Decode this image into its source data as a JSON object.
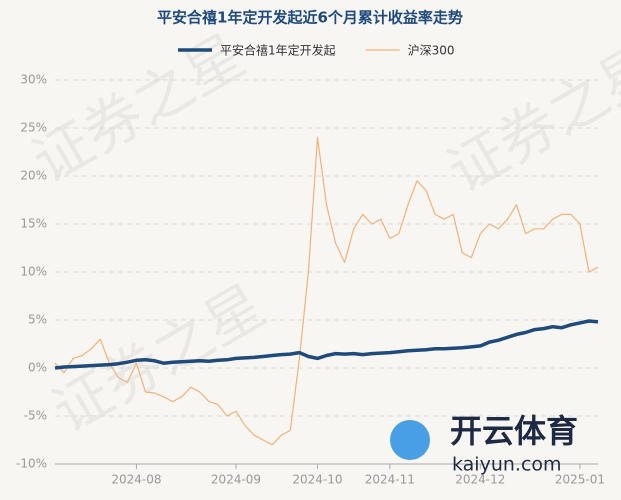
{
  "chart_data": {
    "type": "line",
    "title": "平安合禧1年定开发起近6个月累计收益率走势",
    "categories": [
      null,
      null,
      null,
      null,
      null,
      null,
      null,
      null,
      null,
      "2024-08",
      null,
      null,
      null,
      null,
      null,
      null,
      null,
      null,
      null,
      null,
      "2024-09",
      null,
      null,
      null,
      null,
      null,
      null,
      null,
      null,
      "2024-10",
      null,
      null,
      null,
      null,
      null,
      null,
      null,
      "2024-11",
      null,
      null,
      null,
      null,
      null,
      null,
      null,
      null,
      null,
      "2024-12",
      null,
      null,
      null,
      null,
      null,
      null,
      null,
      null,
      null,
      null,
      "2025-01",
      null,
      null
    ],
    "series": [
      {
        "name": "平安合禧1年定开发起",
        "color": "#1f4a7c",
        "width": 3.5,
        "values": [
          0,
          0.1,
          0.15,
          0.2,
          0.25,
          0.3,
          0.35,
          0.45,
          0.6,
          0.8,
          0.85,
          0.75,
          0.5,
          0.6,
          0.65,
          0.7,
          0.75,
          0.7,
          0.8,
          0.85,
          1.0,
          1.05,
          1.1,
          1.2,
          1.3,
          1.4,
          1.45,
          1.6,
          1.2,
          1.0,
          1.3,
          1.5,
          1.45,
          1.5,
          1.4,
          1.5,
          1.55,
          1.6,
          1.7,
          1.8,
          1.85,
          1.9,
          2.0,
          2.0,
          2.05,
          2.1,
          2.2,
          2.3,
          2.7,
          2.9,
          3.2,
          3.5,
          3.7,
          4.0,
          4.1,
          4.3,
          4.2,
          4.5,
          4.7,
          4.9,
          4.8
        ]
      },
      {
        "name": "沪深300",
        "color": "#f0b27a",
        "width": 1.2,
        "values": [
          0.5,
          -0.5,
          1.0,
          1.3,
          2.0,
          3.0,
          0.5,
          -1.0,
          -1.5,
          0.5,
          -2.5,
          -2.6,
          -3.0,
          -3.5,
          -3.0,
          -2.0,
          -2.5,
          -3.5,
          -3.8,
          -5.0,
          -4.5,
          -6.0,
          -7.0,
          -7.5,
          -8.0,
          -7.0,
          -6.5,
          1.0,
          10,
          24,
          17,
          13,
          11,
          14.5,
          16,
          15,
          15.5,
          13.5,
          14,
          17,
          19.5,
          18.5,
          16,
          15.5,
          16,
          12,
          11.5,
          14,
          15,
          14.5,
          15.5,
          17,
          14,
          14.5,
          14.5,
          15.5,
          16,
          16,
          15,
          10,
          10.5
        ]
      }
    ],
    "ylim": [
      -10,
      30
    ],
    "yticks": [
      {
        "value": -10,
        "label": "-10%"
      },
      {
        "value": -5,
        "label": "-5%"
      },
      {
        "value": 0,
        "label": "0%"
      },
      {
        "value": 5,
        "label": "5%"
      },
      {
        "value": 10,
        "label": "10%"
      },
      {
        "value": 15,
        "label": "15%"
      },
      {
        "value": 20,
        "label": "20%"
      },
      {
        "value": 25,
        "label": "25%"
      },
      {
        "value": 30,
        "label": "30%"
      }
    ],
    "grid": true,
    "watermarks": [
      "证券之星",
      "开云体育",
      "kaiyun.com"
    ]
  }
}
